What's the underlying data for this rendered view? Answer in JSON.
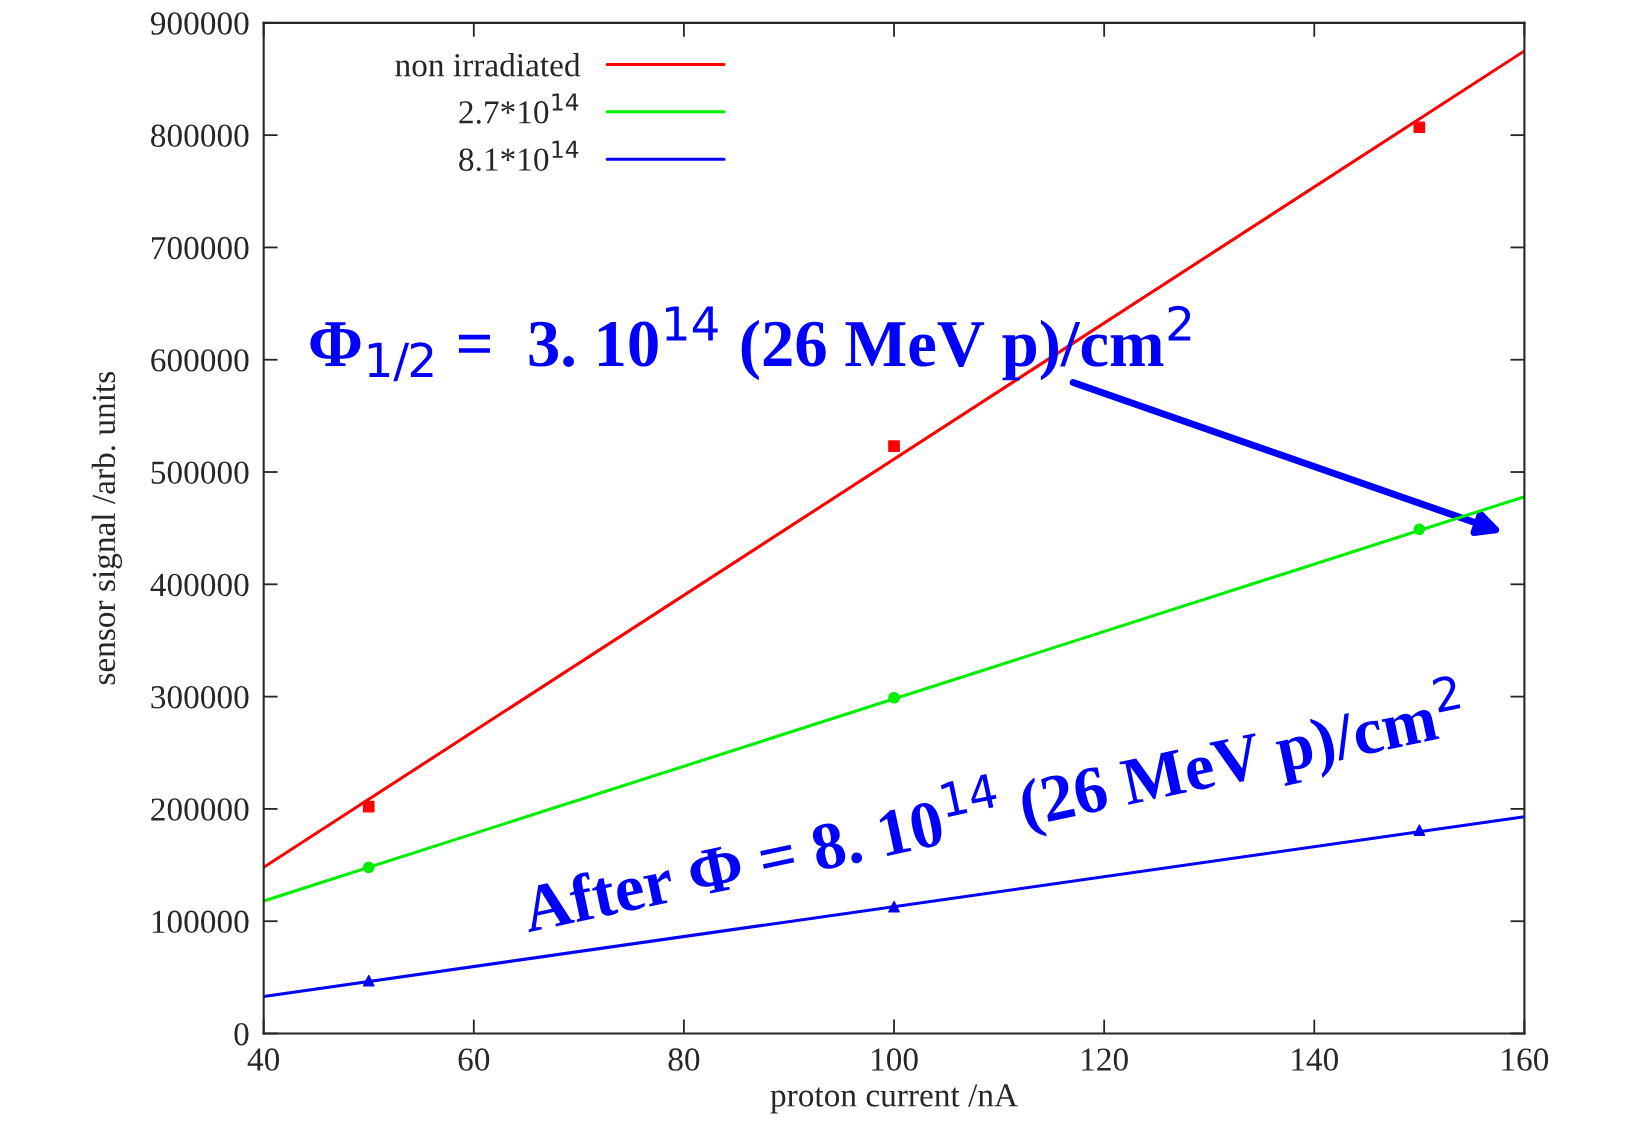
{
  "chart_data": {
    "type": "scatter",
    "xlabel": "proton current /nA",
    "ylabel": "sensor signal /arb. units",
    "xlim": [
      40,
      160
    ],
    "xticks": [
      40,
      60,
      80,
      100,
      120,
      140,
      160
    ],
    "ylim": [
      0,
      900000
    ],
    "yticks": [
      0,
      100000,
      200000,
      300000,
      400000,
      500000,
      600000,
      700000,
      800000,
      900000
    ],
    "grid": false,
    "legend": "top left",
    "series": [
      {
        "type": "line",
        "name": "non irradiated",
        "color": "#ff0000",
        "x": [
          40,
          160
        ],
        "values": [
          148000,
          875000
        ],
        "marker": "none"
      },
      {
        "type": "line",
        "name": "2.7*10$^{14}$",
        "color": "#00ee00",
        "x": [
          40,
          160
        ],
        "values": [
          118000,
          478000
        ],
        "marker": "none"
      },
      {
        "type": "line",
        "name": "8.1*10$^{14}$",
        "color": "#0000ff",
        "x": [
          40,
          160
        ],
        "values": [
          33000,
          193000
        ],
        "marker": "none"
      },
      {
        "color": "#ff0000",
        "x": [
          50,
          100,
          150
        ],
        "values": [
          202000,
          523000,
          807000
        ],
        "marker": "square"
      },
      {
        "color": "#00ee00",
        "x": [
          50,
          100,
          150
        ],
        "values": [
          148000,
          299000,
          449000
        ],
        "marker": "circle"
      },
      {
        "color": "#0000ff",
        "x": [
          50,
          100,
          150
        ],
        "values": [
          47000,
          113000,
          181000
        ],
        "marker": "triangle"
      }
    ],
    "annotations": [
      "Φ$_{1/2}$ =  3. 10$^{14}$ (26 MeV p)/cm$^{2}$",
      "After Φ = 8. 10$^{14}$ (26 MeV p)/cm$^{2}$"
    ]
  }
}
